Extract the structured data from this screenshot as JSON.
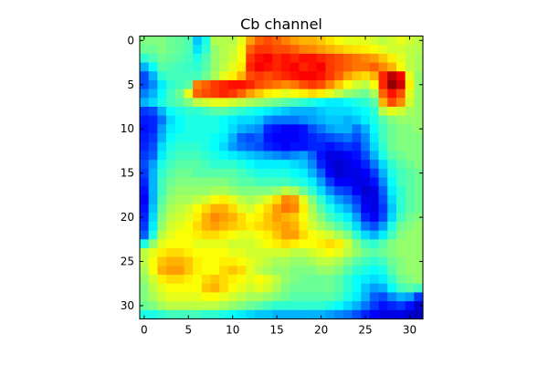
{
  "chart_data": {
    "type": "heatmap",
    "title": "Cb channel",
    "xlabel": "",
    "ylabel": "",
    "colormap": "jet",
    "xlim": [
      -0.5,
      31.5
    ],
    "ylim": [
      31.5,
      -0.5
    ],
    "xticks": [
      0,
      5,
      10,
      15,
      20,
      25,
      30
    ],
    "yticks": [
      0,
      5,
      10,
      15,
      20,
      25,
      30
    ],
    "grid": false,
    "value_range": [
      0,
      1
    ],
    "rows": 32,
    "cols": 32,
    "values": [
      [
        0.5,
        0.5,
        0.5,
        0.48,
        0.47,
        0.45,
        0.32,
        0.4,
        0.55,
        0.55,
        0.55,
        0.6,
        0.72,
        0.78,
        0.8,
        0.78,
        0.75,
        0.72,
        0.7,
        0.7,
        0.68,
        0.65,
        0.62,
        0.6,
        0.6,
        0.6,
        0.58,
        0.56,
        0.58,
        0.6,
        0.58,
        0.56
      ],
      [
        0.48,
        0.48,
        0.5,
        0.48,
        0.47,
        0.45,
        0.35,
        0.42,
        0.52,
        0.55,
        0.57,
        0.62,
        0.78,
        0.82,
        0.82,
        0.8,
        0.8,
        0.78,
        0.75,
        0.74,
        0.72,
        0.7,
        0.68,
        0.66,
        0.65,
        0.64,
        0.62,
        0.6,
        0.58,
        0.58,
        0.56,
        0.55
      ],
      [
        0.42,
        0.45,
        0.48,
        0.47,
        0.46,
        0.44,
        0.4,
        0.45,
        0.52,
        0.55,
        0.58,
        0.62,
        0.82,
        0.86,
        0.88,
        0.84,
        0.86,
        0.84,
        0.86,
        0.86,
        0.84,
        0.82,
        0.8,
        0.78,
        0.76,
        0.74,
        0.72,
        0.68,
        0.64,
        0.6,
        0.56,
        0.54
      ],
      [
        0.3,
        0.38,
        0.46,
        0.45,
        0.44,
        0.43,
        0.42,
        0.46,
        0.52,
        0.56,
        0.6,
        0.64,
        0.84,
        0.88,
        0.86,
        0.84,
        0.86,
        0.88,
        0.84,
        0.86,
        0.88,
        0.82,
        0.8,
        0.78,
        0.76,
        0.76,
        0.78,
        0.74,
        0.7,
        0.62,
        0.56,
        0.54
      ],
      [
        0.2,
        0.3,
        0.42,
        0.44,
        0.44,
        0.44,
        0.44,
        0.48,
        0.54,
        0.6,
        0.64,
        0.7,
        0.8,
        0.82,
        0.8,
        0.82,
        0.84,
        0.86,
        0.88,
        0.88,
        0.86,
        0.82,
        0.78,
        0.72,
        0.68,
        0.66,
        0.7,
        0.84,
        0.94,
        0.88,
        0.6,
        0.52
      ],
      [
        0.2,
        0.26,
        0.36,
        0.42,
        0.44,
        0.46,
        0.75,
        0.78,
        0.82,
        0.84,
        0.86,
        0.86,
        0.84,
        0.8,
        0.78,
        0.76,
        0.74,
        0.76,
        0.8,
        0.82,
        0.8,
        0.74,
        0.68,
        0.62,
        0.58,
        0.56,
        0.62,
        0.84,
        0.98,
        0.92,
        0.64,
        0.52
      ],
      [
        0.25,
        0.3,
        0.38,
        0.44,
        0.48,
        0.6,
        0.78,
        0.8,
        0.82,
        0.84,
        0.82,
        0.78,
        0.72,
        0.68,
        0.64,
        0.62,
        0.6,
        0.62,
        0.64,
        0.66,
        0.64,
        0.6,
        0.56,
        0.52,
        0.5,
        0.48,
        0.54,
        0.78,
        0.86,
        0.8,
        0.6,
        0.52
      ],
      [
        0.3,
        0.34,
        0.4,
        0.44,
        0.46,
        0.5,
        0.56,
        0.58,
        0.6,
        0.6,
        0.58,
        0.56,
        0.54,
        0.52,
        0.5,
        0.48,
        0.46,
        0.44,
        0.42,
        0.4,
        0.38,
        0.36,
        0.36,
        0.38,
        0.4,
        0.42,
        0.46,
        0.7,
        0.8,
        0.74,
        0.58,
        0.52
      ],
      [
        0.18,
        0.2,
        0.3,
        0.38,
        0.4,
        0.42,
        0.42,
        0.44,
        0.46,
        0.46,
        0.44,
        0.42,
        0.4,
        0.38,
        0.36,
        0.34,
        0.32,
        0.3,
        0.3,
        0.3,
        0.32,
        0.34,
        0.34,
        0.34,
        0.36,
        0.38,
        0.42,
        0.56,
        0.6,
        0.58,
        0.54,
        0.52
      ],
      [
        0.15,
        0.16,
        0.24,
        0.34,
        0.38,
        0.4,
        0.4,
        0.4,
        0.4,
        0.38,
        0.36,
        0.34,
        0.34,
        0.32,
        0.26,
        0.24,
        0.24,
        0.24,
        0.26,
        0.28,
        0.3,
        0.32,
        0.32,
        0.3,
        0.32,
        0.36,
        0.4,
        0.46,
        0.5,
        0.52,
        0.52,
        0.52
      ],
      [
        0.14,
        0.16,
        0.28,
        0.36,
        0.38,
        0.4,
        0.4,
        0.4,
        0.4,
        0.38,
        0.34,
        0.3,
        0.28,
        0.26,
        0.16,
        0.14,
        0.12,
        0.12,
        0.14,
        0.2,
        0.24,
        0.28,
        0.3,
        0.3,
        0.24,
        0.3,
        0.38,
        0.44,
        0.48,
        0.5,
        0.5,
        0.52
      ],
      [
        0.15,
        0.18,
        0.3,
        0.38,
        0.4,
        0.4,
        0.4,
        0.4,
        0.38,
        0.36,
        0.3,
        0.22,
        0.2,
        0.22,
        0.14,
        0.12,
        0.12,
        0.12,
        0.14,
        0.16,
        0.18,
        0.2,
        0.22,
        0.24,
        0.2,
        0.26,
        0.36,
        0.44,
        0.48,
        0.5,
        0.5,
        0.5
      ],
      [
        0.16,
        0.2,
        0.34,
        0.4,
        0.42,
        0.42,
        0.42,
        0.4,
        0.38,
        0.34,
        0.28,
        0.24,
        0.22,
        0.2,
        0.16,
        0.14,
        0.12,
        0.14,
        0.14,
        0.16,
        0.16,
        0.14,
        0.16,
        0.18,
        0.16,
        0.24,
        0.34,
        0.42,
        0.48,
        0.5,
        0.5,
        0.5
      ],
      [
        0.18,
        0.22,
        0.36,
        0.42,
        0.44,
        0.44,
        0.44,
        0.42,
        0.4,
        0.38,
        0.36,
        0.34,
        0.32,
        0.3,
        0.28,
        0.26,
        0.24,
        0.26,
        0.28,
        0.22,
        0.14,
        0.1,
        0.1,
        0.12,
        0.14,
        0.2,
        0.3,
        0.4,
        0.46,
        0.48,
        0.5,
        0.5
      ],
      [
        0.2,
        0.28,
        0.4,
        0.44,
        0.46,
        0.46,
        0.46,
        0.44,
        0.42,
        0.42,
        0.42,
        0.4,
        0.38,
        0.36,
        0.36,
        0.36,
        0.36,
        0.34,
        0.32,
        0.26,
        0.16,
        0.1,
        0.08,
        0.1,
        0.12,
        0.16,
        0.24,
        0.34,
        0.42,
        0.46,
        0.48,
        0.5
      ],
      [
        0.18,
        0.3,
        0.42,
        0.46,
        0.48,
        0.48,
        0.46,
        0.46,
        0.46,
        0.46,
        0.46,
        0.44,
        0.42,
        0.4,
        0.4,
        0.4,
        0.4,
        0.38,
        0.36,
        0.3,
        0.22,
        0.12,
        0.08,
        0.1,
        0.1,
        0.12,
        0.18,
        0.3,
        0.4,
        0.44,
        0.46,
        0.48
      ],
      [
        0.16,
        0.3,
        0.44,
        0.48,
        0.5,
        0.5,
        0.5,
        0.5,
        0.5,
        0.5,
        0.48,
        0.46,
        0.46,
        0.44,
        0.44,
        0.44,
        0.44,
        0.42,
        0.4,
        0.36,
        0.28,
        0.18,
        0.12,
        0.12,
        0.1,
        0.1,
        0.14,
        0.26,
        0.38,
        0.44,
        0.46,
        0.48
      ],
      [
        0.14,
        0.3,
        0.44,
        0.5,
        0.52,
        0.52,
        0.52,
        0.52,
        0.54,
        0.54,
        0.52,
        0.5,
        0.5,
        0.5,
        0.5,
        0.52,
        0.56,
        0.54,
        0.48,
        0.42,
        0.34,
        0.26,
        0.2,
        0.18,
        0.12,
        0.08,
        0.1,
        0.22,
        0.36,
        0.42,
        0.46,
        0.48
      ],
      [
        0.12,
        0.3,
        0.46,
        0.52,
        0.54,
        0.54,
        0.56,
        0.58,
        0.62,
        0.64,
        0.6,
        0.56,
        0.54,
        0.56,
        0.6,
        0.66,
        0.74,
        0.72,
        0.6,
        0.5,
        0.42,
        0.34,
        0.28,
        0.24,
        0.18,
        0.1,
        0.1,
        0.2,
        0.34,
        0.42,
        0.46,
        0.48
      ],
      [
        0.14,
        0.32,
        0.48,
        0.54,
        0.56,
        0.58,
        0.62,
        0.66,
        0.7,
        0.7,
        0.66,
        0.6,
        0.58,
        0.62,
        0.66,
        0.72,
        0.76,
        0.74,
        0.64,
        0.54,
        0.46,
        0.4,
        0.34,
        0.3,
        0.22,
        0.12,
        0.1,
        0.18,
        0.32,
        0.42,
        0.46,
        0.48
      ],
      [
        0.16,
        0.34,
        0.5,
        0.56,
        0.58,
        0.6,
        0.64,
        0.7,
        0.74,
        0.72,
        0.7,
        0.66,
        0.62,
        0.64,
        0.68,
        0.72,
        0.7,
        0.68,
        0.62,
        0.56,
        0.5,
        0.44,
        0.4,
        0.36,
        0.28,
        0.16,
        0.12,
        0.2,
        0.34,
        0.44,
        0.48,
        0.5
      ],
      [
        0.18,
        0.36,
        0.52,
        0.58,
        0.6,
        0.62,
        0.66,
        0.7,
        0.72,
        0.7,
        0.68,
        0.66,
        0.64,
        0.66,
        0.68,
        0.7,
        0.72,
        0.7,
        0.64,
        0.58,
        0.54,
        0.5,
        0.46,
        0.42,
        0.34,
        0.24,
        0.2,
        0.28,
        0.4,
        0.48,
        0.5,
        0.52
      ],
      [
        0.22,
        0.4,
        0.56,
        0.6,
        0.62,
        0.62,
        0.64,
        0.66,
        0.66,
        0.64,
        0.62,
        0.6,
        0.6,
        0.62,
        0.64,
        0.68,
        0.72,
        0.72,
        0.66,
        0.62,
        0.6,
        0.58,
        0.54,
        0.5,
        0.42,
        0.34,
        0.3,
        0.36,
        0.44,
        0.5,
        0.52,
        0.52
      ],
      [
        0.4,
        0.52,
        0.6,
        0.62,
        0.62,
        0.62,
        0.6,
        0.6,
        0.6,
        0.6,
        0.58,
        0.58,
        0.58,
        0.6,
        0.62,
        0.64,
        0.66,
        0.64,
        0.62,
        0.62,
        0.64,
        0.66,
        0.64,
        0.58,
        0.5,
        0.44,
        0.42,
        0.46,
        0.5,
        0.52,
        0.52,
        0.52
      ],
      [
        0.56,
        0.6,
        0.64,
        0.66,
        0.66,
        0.64,
        0.62,
        0.62,
        0.62,
        0.62,
        0.6,
        0.6,
        0.58,
        0.58,
        0.58,
        0.58,
        0.58,
        0.56,
        0.56,
        0.58,
        0.6,
        0.62,
        0.6,
        0.56,
        0.52,
        0.48,
        0.46,
        0.48,
        0.5,
        0.52,
        0.52,
        0.52
      ],
      [
        0.56,
        0.62,
        0.68,
        0.7,
        0.7,
        0.68,
        0.64,
        0.62,
        0.62,
        0.64,
        0.64,
        0.62,
        0.6,
        0.58,
        0.56,
        0.54,
        0.54,
        0.52,
        0.52,
        0.54,
        0.56,
        0.56,
        0.54,
        0.5,
        0.46,
        0.44,
        0.42,
        0.44,
        0.48,
        0.5,
        0.52,
        0.52
      ],
      [
        0.54,
        0.62,
        0.7,
        0.72,
        0.72,
        0.68,
        0.64,
        0.62,
        0.62,
        0.66,
        0.68,
        0.66,
        0.6,
        0.56,
        0.54,
        0.52,
        0.52,
        0.5,
        0.5,
        0.5,
        0.52,
        0.52,
        0.5,
        0.46,
        0.42,
        0.4,
        0.38,
        0.4,
        0.46,
        0.5,
        0.52,
        0.52
      ],
      [
        0.52,
        0.58,
        0.64,
        0.66,
        0.66,
        0.64,
        0.62,
        0.66,
        0.68,
        0.66,
        0.64,
        0.62,
        0.6,
        0.62,
        0.6,
        0.56,
        0.52,
        0.5,
        0.48,
        0.48,
        0.48,
        0.48,
        0.46,
        0.42,
        0.38,
        0.36,
        0.34,
        0.36,
        0.42,
        0.48,
        0.5,
        0.52
      ],
      [
        0.5,
        0.56,
        0.6,
        0.62,
        0.62,
        0.62,
        0.62,
        0.68,
        0.7,
        0.66,
        0.62,
        0.6,
        0.58,
        0.6,
        0.58,
        0.54,
        0.5,
        0.48,
        0.48,
        0.48,
        0.48,
        0.48,
        0.46,
        0.42,
        0.38,
        0.32,
        0.28,
        0.3,
        0.38,
        0.44,
        0.46,
        0.44
      ],
      [
        0.5,
        0.54,
        0.58,
        0.6,
        0.6,
        0.6,
        0.6,
        0.62,
        0.62,
        0.6,
        0.58,
        0.56,
        0.54,
        0.54,
        0.52,
        0.5,
        0.48,
        0.46,
        0.46,
        0.46,
        0.46,
        0.46,
        0.44,
        0.4,
        0.36,
        0.3,
        0.22,
        0.2,
        0.26,
        0.3,
        0.28,
        0.18
      ],
      [
        0.48,
        0.5,
        0.54,
        0.56,
        0.56,
        0.56,
        0.56,
        0.56,
        0.56,
        0.54,
        0.52,
        0.5,
        0.48,
        0.46,
        0.44,
        0.42,
        0.42,
        0.42,
        0.42,
        0.42,
        0.42,
        0.4,
        0.38,
        0.34,
        0.3,
        0.24,
        0.18,
        0.14,
        0.16,
        0.18,
        0.14,
        0.08
      ],
      [
        0.4,
        0.4,
        0.42,
        0.44,
        0.44,
        0.44,
        0.44,
        0.42,
        0.42,
        0.4,
        0.38,
        0.36,
        0.34,
        0.32,
        0.32,
        0.3,
        0.3,
        0.3,
        0.3,
        0.3,
        0.3,
        0.28,
        0.26,
        0.24,
        0.2,
        0.16,
        0.12,
        0.1,
        0.1,
        0.1,
        0.08,
        0.06
      ]
    ]
  }
}
